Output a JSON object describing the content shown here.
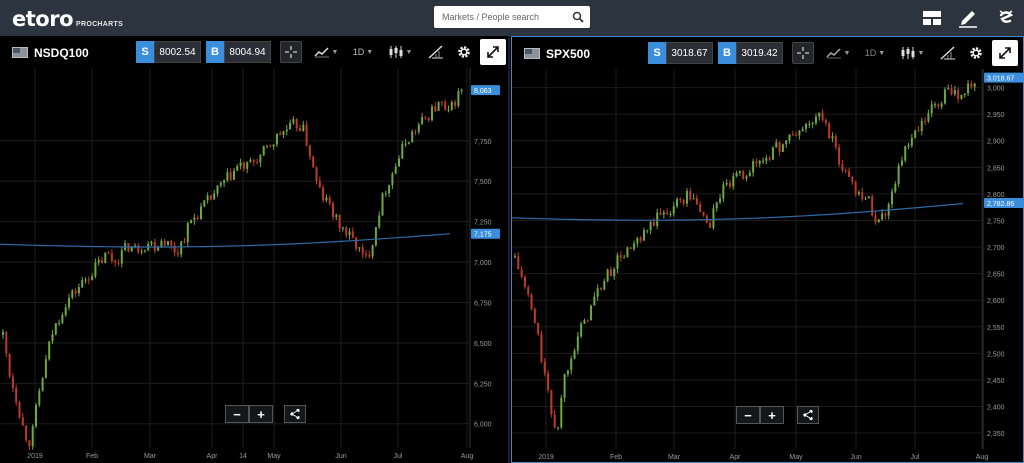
{
  "app": {
    "logo": "etoro",
    "logo_sub": "PROCHARTS"
  },
  "search": {
    "placeholder": "Markets / People search"
  },
  "toolbar_icons": [
    "layout-icon",
    "pencil-icon",
    "etoro-e-icon"
  ],
  "colors": {
    "up": "#6fa842",
    "down": "#c0392b",
    "ma": "#2f6ba8",
    "grid": "#1c1c1c",
    "accent": "#3a8edc"
  },
  "charts": [
    {
      "symbol": "NSDQ100",
      "sell_label": "S",
      "sell": "8002.54",
      "buy_label": "B",
      "buy": "8004.94",
      "timeframe": "1D",
      "price_label": "8,063",
      "ma_label": "7,175",
      "chart_data": {
        "type": "candlestick",
        "x_tick_labels": [
          "2019",
          "Feb",
          "Mar",
          "Apr",
          "14",
          "May",
          "Jun",
          "Jul",
          "Aug"
        ],
        "y_tick_labels": [
          "6,000",
          "6,250",
          "6,500",
          "6,750",
          "7,000",
          "7,250",
          "7,500",
          "7,750"
        ],
        "ylim": [
          5850,
          8200
        ],
        "close_path": [
          6550,
          6300,
          6150,
          5950,
          5880,
          6150,
          6350,
          6550,
          6650,
          6750,
          6800,
          6850,
          6900,
          6950,
          7000,
          7050,
          7000,
          7050,
          7100,
          7080,
          7100,
          7120,
          7100,
          7150,
          7100,
          7060,
          7150,
          7250,
          7300,
          7350,
          7400,
          7450,
          7500,
          7550,
          7600,
          7580,
          7620,
          7650,
          7700,
          7750,
          7800,
          7820,
          7850,
          7840,
          7700,
          7500,
          7400,
          7350,
          7250,
          7200,
          7150,
          7100,
          7000,
          7100,
          7300,
          7450,
          7550,
          7650,
          7750,
          7800,
          7850,
          7900,
          7950,
          7980,
          7900,
          8000,
          8063
        ],
        "ma_start": 7110,
        "ma_end": 7175
      },
      "zoom_out": "−",
      "zoom_in": "+"
    },
    {
      "symbol": "SPX500",
      "sell_label": "S",
      "sell": "3018.67",
      "buy_label": "B",
      "buy": "3019.42",
      "timeframe": "1D",
      "price_label": "3,018.67",
      "ma_label": "2,782.86",
      "chart_data": {
        "type": "candlestick",
        "x_tick_labels": [
          "2019",
          "Feb",
          "Mar",
          "Apr",
          "May",
          "Jun",
          "Jul",
          "Aug"
        ],
        "y_tick_labels": [
          "2,350",
          "2,400",
          "2,450",
          "2,500",
          "2,550",
          "2,600",
          "2,650",
          "2,700",
          "2,750",
          "2,800",
          "2,850",
          "2,900",
          "2,950",
          "3,000"
        ],
        "ylim": [
          2320,
          3035
        ],
        "close_path": [
          2680,
          2640,
          2600,
          2550,
          2480,
          2400,
          2350,
          2450,
          2500,
          2530,
          2560,
          2590,
          2620,
          2640,
          2660,
          2680,
          2690,
          2700,
          2710,
          2730,
          2750,
          2760,
          2770,
          2780,
          2790,
          2800,
          2780,
          2760,
          2740,
          2790,
          2810,
          2820,
          2830,
          2840,
          2850,
          2860,
          2870,
          2880,
          2890,
          2900,
          2910,
          2920,
          2930,
          2940,
          2945,
          2920,
          2880,
          2850,
          2830,
          2810,
          2800,
          2780,
          2750,
          2760,
          2800,
          2850,
          2880,
          2900,
          2920,
          2940,
          2960,
          2970,
          2990,
          3000,
          2980,
          3000,
          3018
        ],
        "ma_start": 2755,
        "ma_end": 2782
      },
      "zoom_out": "−",
      "zoom_in": "+"
    }
  ]
}
